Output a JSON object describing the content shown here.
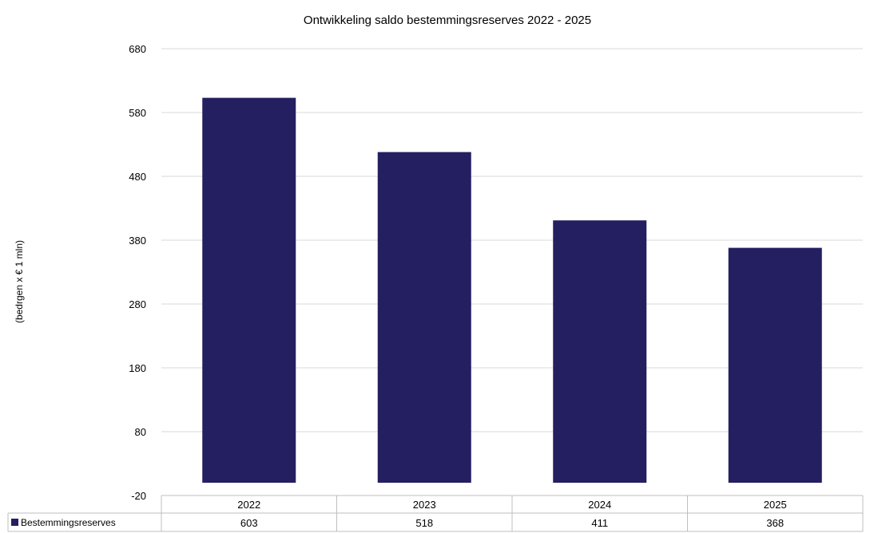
{
  "chart_data": {
    "type": "bar",
    "title": "Ontwikkeling saldo bestemmingsreserves 2022 - 2025",
    "ylabel": "(bedrgen x € 1 mln)",
    "xlabel": "",
    "categories": [
      "2022",
      "2023",
      "2024",
      "2025"
    ],
    "series": [
      {
        "name": "Bestemmingsreserves",
        "values": [
          603,
          518,
          411,
          368
        ],
        "color": "#241f60"
      }
    ],
    "ylim": [
      -20,
      680
    ],
    "yticks": [
      680,
      580,
      480,
      380,
      280,
      180,
      80,
      -20
    ],
    "grid": true,
    "legend": "data-table-left",
    "data_table": true
  }
}
